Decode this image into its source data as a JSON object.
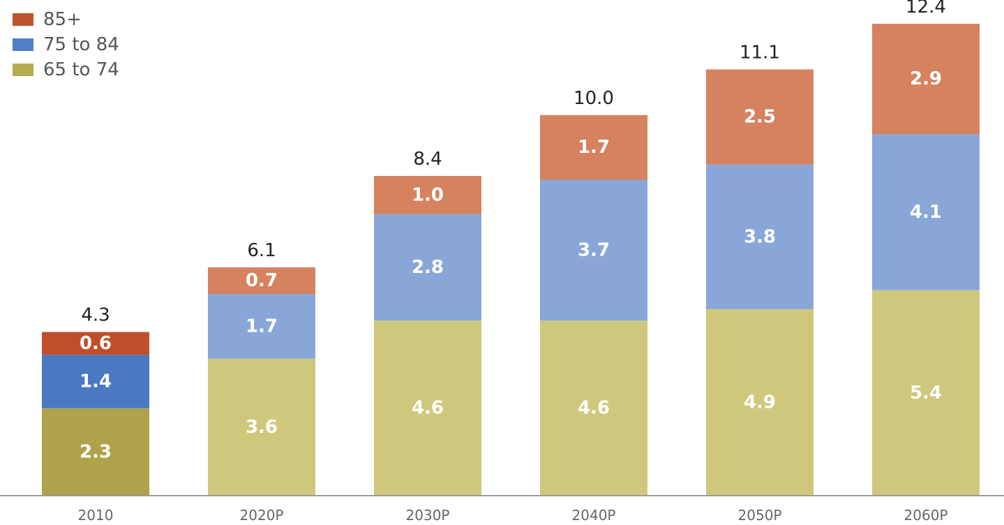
{
  "chart_data": {
    "type": "bar",
    "stacked": true,
    "categories": [
      "2010",
      "2020P",
      "2030P",
      "2040P",
      "2050P",
      "2060P"
    ],
    "series": [
      {
        "name": "65 to 74",
        "values": [
          2.3,
          3.6,
          4.6,
          4.6,
          4.9,
          5.4
        ]
      },
      {
        "name": "75 to 84",
        "values": [
          1.4,
          1.7,
          2.8,
          3.7,
          3.8,
          4.1
        ]
      },
      {
        "name": "85+",
        "values": [
          0.6,
          0.7,
          1.0,
          1.7,
          2.5,
          2.9
        ]
      }
    ],
    "totals": [
      "4.3",
      "6.1",
      "8.4",
      "10.0",
      "11.1",
      "12.4"
    ],
    "segment_labels": [
      [
        "2.3",
        "1.4",
        "0.6"
      ],
      [
        "3.6",
        "1.7",
        "0.7"
      ],
      [
        "4.6",
        "2.8",
        "1.0"
      ],
      [
        "4.6",
        "3.7",
        "1.7"
      ],
      [
        "4.9",
        "3.8",
        "2.5"
      ],
      [
        "5.4",
        "4.1",
        "2.9"
      ]
    ],
    "ylim": [
      0,
      12.4
    ],
    "grid": false,
    "legend_position": "top-left",
    "title": "",
    "xlabel": "",
    "ylabel": ""
  },
  "legend": [
    {
      "label": "85+",
      "color": "#c0542e"
    },
    {
      "label": "75 to 84",
      "color": "#4f7fc6"
    },
    {
      "label": "65 to 74",
      "color": "#b3ad4e"
    }
  ],
  "colors": {
    "first_bar": [
      "#aea34a",
      "#4a78c2",
      "#bf4f2a"
    ],
    "other_bars": [
      "#cfc87c",
      "#88a7d8",
      "#d6825e"
    ]
  }
}
